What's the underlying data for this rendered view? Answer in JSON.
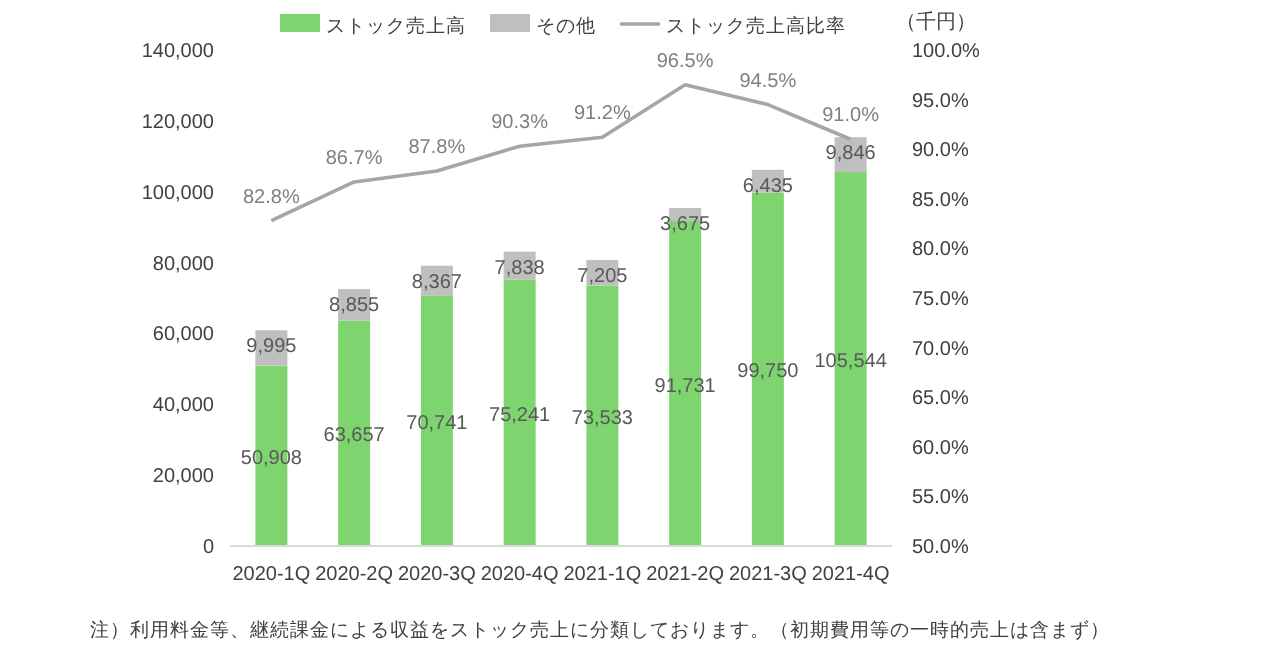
{
  "chart_data": {
    "type": "bar",
    "stacked": true,
    "categories": [
      "2020-1Q",
      "2020-2Q",
      "2020-3Q",
      "2020-4Q",
      "2021-1Q",
      "2021-2Q",
      "2021-3Q",
      "2021-4Q"
    ],
    "series": [
      {
        "name": "ストック売上高",
        "color": "#7ed56f",
        "values": [
          50908,
          63657,
          70741,
          75241,
          73533,
          91731,
          99750,
          105544
        ],
        "value_labels": [
          "50,908",
          "63,657",
          "70,741",
          "75,241",
          "73,533",
          "91,731",
          "99,750",
          "105,544"
        ]
      },
      {
        "name": "その他",
        "color": "#bfbfbf",
        "values": [
          9995,
          8855,
          8367,
          7838,
          7205,
          3675,
          6435,
          9846
        ],
        "value_labels": [
          "9,995",
          "8,855",
          "8,367",
          "7,838",
          "7,205",
          "3,675",
          "6,435",
          "9,846"
        ]
      },
      {
        "name": "ストック売上高比率",
        "type": "line",
        "axis": "y2",
        "color": "#a6a6a6",
        "values": [
          82.8,
          86.7,
          87.8,
          90.3,
          91.2,
          96.5,
          94.5,
          91.0
        ],
        "value_labels": [
          "82.8%",
          "86.7%",
          "87.8%",
          "90.3%",
          "91.2%",
          "96.5%",
          "94.5%",
          "91.0%"
        ]
      }
    ],
    "ylim": [
      0,
      140000
    ],
    "yticks": [
      {
        "value": 0,
        "label": "0"
      },
      {
        "value": 20000,
        "label": "20,000"
      },
      {
        "value": 40000,
        "label": "40,000"
      },
      {
        "value": 60000,
        "label": "60,000"
      },
      {
        "value": 80000,
        "label": "80,000"
      },
      {
        "value": 100000,
        "label": "100,000"
      },
      {
        "value": 120000,
        "label": "120,000"
      },
      {
        "value": 140000,
        "label": "140,000"
      }
    ],
    "y2lim": [
      50,
      100
    ],
    "y2ticks": [
      {
        "value": 50,
        "label": "50.0%"
      },
      {
        "value": 55,
        "label": "55.0%"
      },
      {
        "value": 60,
        "label": "60.0%"
      },
      {
        "value": 65,
        "label": "65.0%"
      },
      {
        "value": 70,
        "label": "70.0%"
      },
      {
        "value": 75,
        "label": "75.0%"
      },
      {
        "value": 80,
        "label": "80.0%"
      },
      {
        "value": 85,
        "label": "85.0%"
      },
      {
        "value": 90,
        "label": "90.0%"
      },
      {
        "value": 95,
        "label": "95.0%"
      },
      {
        "value": 100,
        "label": "100.0%"
      }
    ],
    "legend": "top",
    "annotations": [
      "（千円）",
      "注）利用料金等、継続課金による収益をストック売上に分類しております。（初期費用等の一時的売上は含まず）"
    ]
  }
}
